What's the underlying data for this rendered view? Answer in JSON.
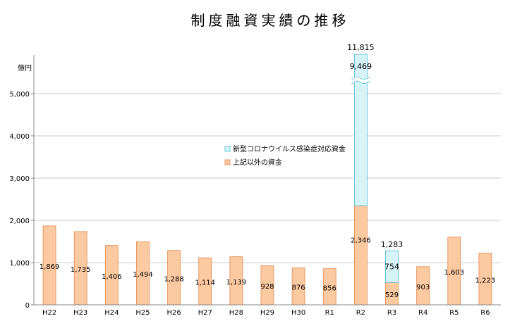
{
  "chart_data": {
    "type": "bar",
    "title": "制度融資実績の推移",
    "unit_label": "億円",
    "ylim": [
      0,
      5800
    ],
    "yticks": [
      0,
      1000,
      2000,
      3000,
      4000,
      5000
    ],
    "ytick_labels": [
      "0",
      "1,000",
      "2,000",
      "3,000",
      "4,000",
      "5,000"
    ],
    "categories": [
      "H22",
      "H23",
      "H24",
      "H25",
      "H26",
      "H27",
      "H28",
      "H29",
      "H30",
      "R1",
      "R2",
      "R3",
      "R4",
      "R5",
      "R6"
    ],
    "series": [
      {
        "name": "上記以外の資金",
        "color": "#fcc9a0",
        "stroke": "#e0894f",
        "values": [
          1869,
          1735,
          1406,
          1494,
          1288,
          1114,
          1139,
          928,
          876,
          856,
          2346,
          529,
          903,
          1603,
          1223
        ],
        "labels": [
          "1,869",
          "1,735",
          "1,406",
          "1,494",
          "1,288",
          "1,114",
          "1,139",
          "928",
          "876",
          "856",
          "2,346",
          "529",
          "903",
          "1,603",
          "1,223"
        ]
      },
      {
        "name": "新型コロナウイルス感染症対応資金",
        "color": "#d6f3f8",
        "stroke": "#4fb9cc",
        "values": [
          null,
          null,
          null,
          null,
          null,
          null,
          null,
          null,
          null,
          null,
          9469,
          754,
          null,
          null,
          null
        ],
        "labels": [
          "",
          "",
          "",
          "",
          "",
          "",
          "",
          "",
          "",
          "",
          "9,469",
          "754",
          "",
          "",
          ""
        ]
      }
    ],
    "totals": [
      {
        "category": "R2",
        "value": 11815,
        "label": "11,815"
      },
      {
        "category": "R3",
        "value": 1283,
        "label": "1,283"
      }
    ],
    "axis_break": {
      "category": "R2",
      "series": "新型コロナウイルス感染症対応資金"
    },
    "legend": [
      "新型コロナウイルス感染症対応資金",
      "上記以外の資金"
    ],
    "grid": true
  }
}
